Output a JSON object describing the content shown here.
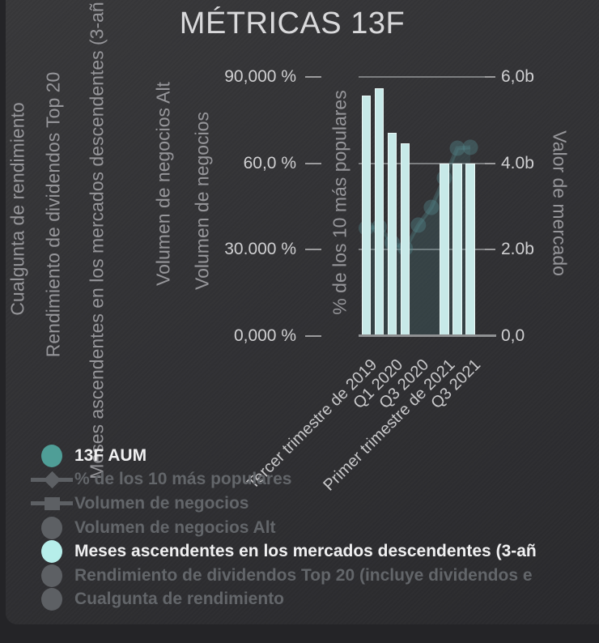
{
  "title": "MÉTRICAS 13F",
  "axis_labels_left": [
    "Cualgunta de rendimiento",
    "Rendimiento de dividendos Top 20",
    "Meses ascendentes en los mercados descendentes (3-añ",
    "Volumen de negocios Alt",
    "Volumen de negocios",
    "% de los 10 más populares"
  ],
  "axis_label_right": "Valor de mercado",
  "chart_data": {
    "type": "bar",
    "title": "MÉTRICAS 13F",
    "x_ticks": [
      "Tercer trimestre de 2019",
      "Q1 2020",
      "Q3 2020",
      "Primer trimestre de 2021",
      "Q3 2021"
    ],
    "left_axis_ticks": [
      "90,000 %",
      "60,0 %",
      "30.000 %",
      "0,000 %"
    ],
    "right_axis_ticks": [
      "6,0b",
      "4.0b",
      "2.0b",
      "0,0"
    ],
    "left_axis_label": "% de los 10 más populares",
    "right_axis_label": "Valor de mercado",
    "left_axis_range": [
      0,
      90
    ],
    "right_axis_range": [
      0,
      6
    ],
    "grid": true,
    "legend_position": "bottom-left",
    "series": [
      {
        "name": "Meses ascendentes en los mercados descendentes (3-añ",
        "type": "bar",
        "axis": "left_percent",
        "color": "#c7e9e8",
        "values": [
          83.5,
          86,
          70.5,
          67,
          null,
          null,
          60,
          60,
          60
        ]
      },
      {
        "name": "13F AUM",
        "type": "scatter-area",
        "axis": "right_billions",
        "color": "#4f9e97",
        "area_fill": "rgba(72,118,122,0.25)",
        "line_color": "rgba(82,132,136,0.35)",
        "dot_color": "rgba(82,132,136,0.42)",
        "values": [
          2.5,
          2.53,
          2.16,
          2.03,
          2.57,
          2.98,
          3.66,
          4.35,
          4.37
        ]
      }
    ]
  },
  "legend": [
    {
      "label": "13F AUM",
      "marker": "circle",
      "color": "#4f9e97",
      "active": true
    },
    {
      "label": "% de los 10 más populares",
      "marker": "diamond-line",
      "color": "#5d6064",
      "active": false
    },
    {
      "label": "Volumen de negocios",
      "marker": "square-line",
      "color": "#5d6064",
      "active": false
    },
    {
      "label": "Volumen de negocios Alt",
      "marker": "circle",
      "color": "#5d6064",
      "active": false
    },
    {
      "label": "Meses ascendentes en los mercados descendentes (3-añ",
      "marker": "circle",
      "color": "#b6eeea",
      "active": true
    },
    {
      "label": "Rendimiento de dividendos Top 20 (incluye dividendos e",
      "marker": "circle",
      "color": "#5d6064",
      "active": false
    },
    {
      "label": "Cualgunta de rendimiento",
      "marker": "circle",
      "color": "#5d6064",
      "active": false
    }
  ]
}
